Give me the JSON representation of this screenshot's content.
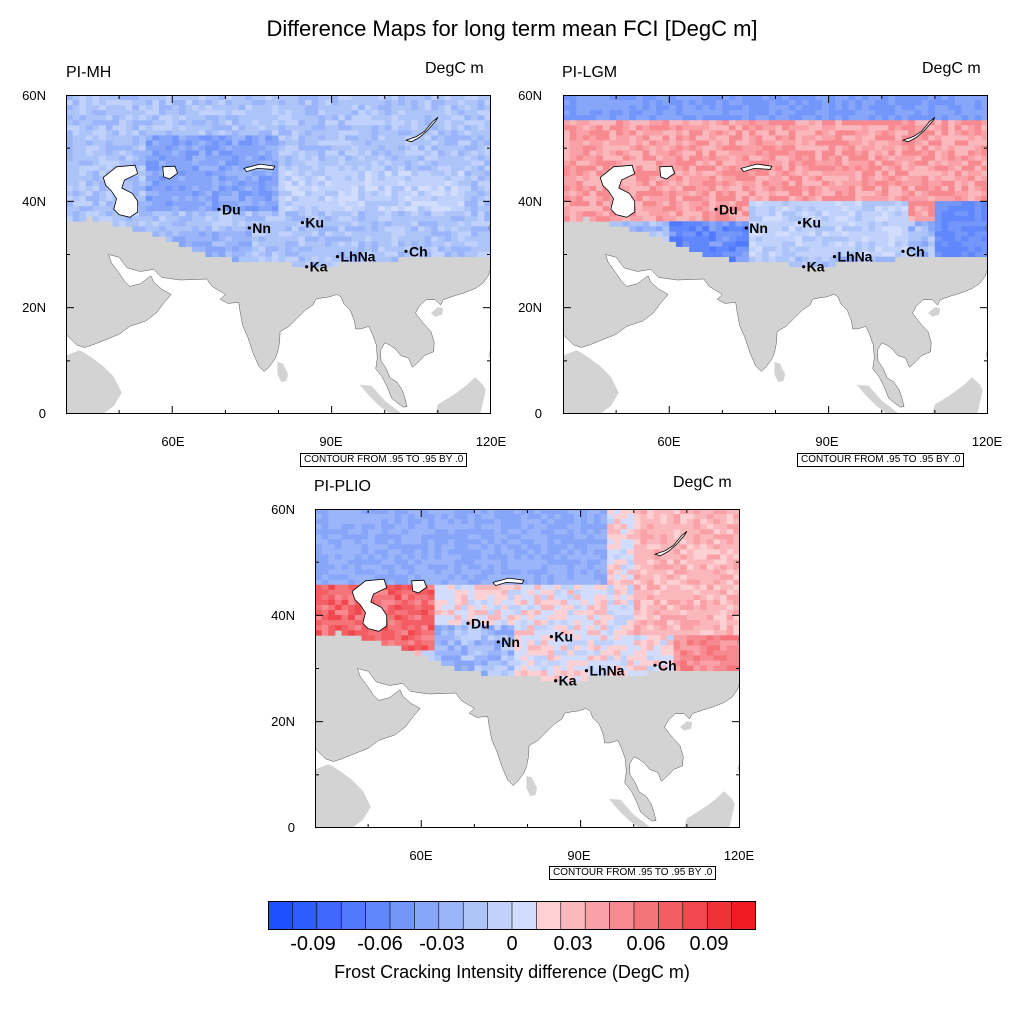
{
  "title": "Difference Maps for long term mean FCI [DegC m]",
  "panels": [
    {
      "label": "PI-MH",
      "unit": "DegC m",
      "contour": "CONTOUR FROM .95 TO .95 BY .0",
      "pattern": "mh"
    },
    {
      "label": "PI-LGM",
      "unit": "DegC m",
      "contour": "CONTOUR FROM .95 TO .95 BY .0",
      "pattern": "lgm"
    },
    {
      "label": "PI-PLIO",
      "unit": "DegC m",
      "contour": "CONTOUR FROM .95 TO .95 BY .0",
      "pattern": "plio"
    }
  ],
  "axes": {
    "lat_ticks": [
      "60N",
      "40N",
      "20N",
      "0"
    ],
    "lon_ticks": [
      "60E",
      "90E",
      "120E"
    ],
    "lat_range": [
      0,
      60
    ],
    "lon_range": [
      40,
      120
    ]
  },
  "sites": [
    {
      "code": "Du",
      "lon": 68.8,
      "lat": 38.5
    },
    {
      "code": "Nn",
      "lon": 74.5,
      "lat": 35.0
    },
    {
      "code": "Ku",
      "lon": 84.5,
      "lat": 36.0
    },
    {
      "code": "Ka",
      "lon": 85.3,
      "lat": 27.7
    },
    {
      "code": "LhNa",
      "lon": 91.1,
      "lat": 29.6
    },
    {
      "code": "Ch",
      "lon": 104.0,
      "lat": 30.6
    }
  ],
  "colorbar": {
    "title": "Frost Cracking Intensity difference (DegC m)",
    "tick_labels": [
      "-0.09",
      "-0.06",
      "-0.03",
      "0",
      "0.03",
      "0.06",
      "0.09"
    ],
    "colors": [
      "#1e50ff",
      "#2d5cff",
      "#3e68fe",
      "#5079fc",
      "#6087fb",
      "#7396fa",
      "#87a6f9",
      "#9ab5f9",
      "#adc4f9",
      "#c0d2fb",
      "#d2ddfe",
      "#fdd0d3",
      "#fbb8bc",
      "#f9a1a6",
      "#f78a90",
      "#f5747a",
      "#f35d64",
      "#f1474e",
      "#f03138",
      "#ef1c22"
    ]
  },
  "land_color": "#d3d3d3"
}
